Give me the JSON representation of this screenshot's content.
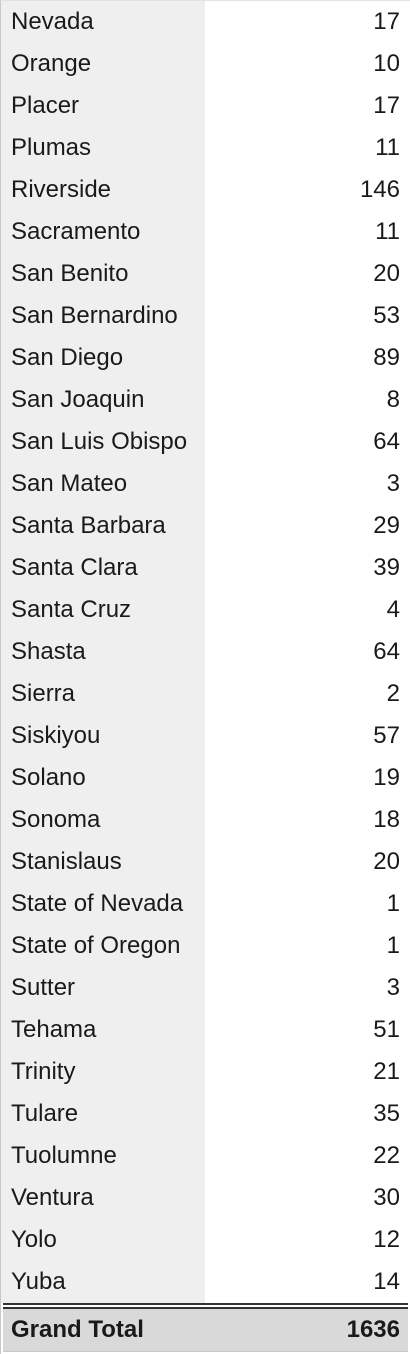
{
  "rows": [
    {
      "county": "Nevada",
      "count": "17"
    },
    {
      "county": "Orange",
      "count": "10"
    },
    {
      "county": "Placer",
      "count": "17"
    },
    {
      "county": "Plumas",
      "count": "11"
    },
    {
      "county": "Riverside",
      "count": "146"
    },
    {
      "county": "Sacramento",
      "count": "11"
    },
    {
      "county": "San Benito",
      "count": "20"
    },
    {
      "county": "San Bernardino",
      "count": "53"
    },
    {
      "county": "San Diego",
      "count": "89"
    },
    {
      "county": "San Joaquin",
      "count": "8"
    },
    {
      "county": "San Luis Obispo",
      "count": "64"
    },
    {
      "county": "San Mateo",
      "count": "3"
    },
    {
      "county": "Santa Barbara",
      "count": "29"
    },
    {
      "county": "Santa Clara",
      "count": "39"
    },
    {
      "county": "Santa Cruz",
      "count": "4"
    },
    {
      "county": "Shasta",
      "count": "64"
    },
    {
      "county": "Sierra",
      "count": "2"
    },
    {
      "county": "Siskiyou",
      "count": "57"
    },
    {
      "county": "Solano",
      "count": "19"
    },
    {
      "county": "Sonoma",
      "count": "18"
    },
    {
      "county": "Stanislaus",
      "count": "20"
    },
    {
      "county": "State of Nevada",
      "count": "1"
    },
    {
      "county": "State of Oregon",
      "count": "1"
    },
    {
      "county": "Sutter",
      "count": "3"
    },
    {
      "county": "Tehama",
      "count": "51"
    },
    {
      "county": "Trinity",
      "count": "21"
    },
    {
      "county": "Tulare",
      "count": "35"
    },
    {
      "county": "Tuolumne",
      "count": "22"
    },
    {
      "county": "Ventura",
      "count": "30"
    },
    {
      "county": "Yolo",
      "count": "12"
    },
    {
      "county": "Yuba",
      "count": "14"
    }
  ],
  "total": {
    "label": "Grand Total",
    "count": "1636"
  }
}
